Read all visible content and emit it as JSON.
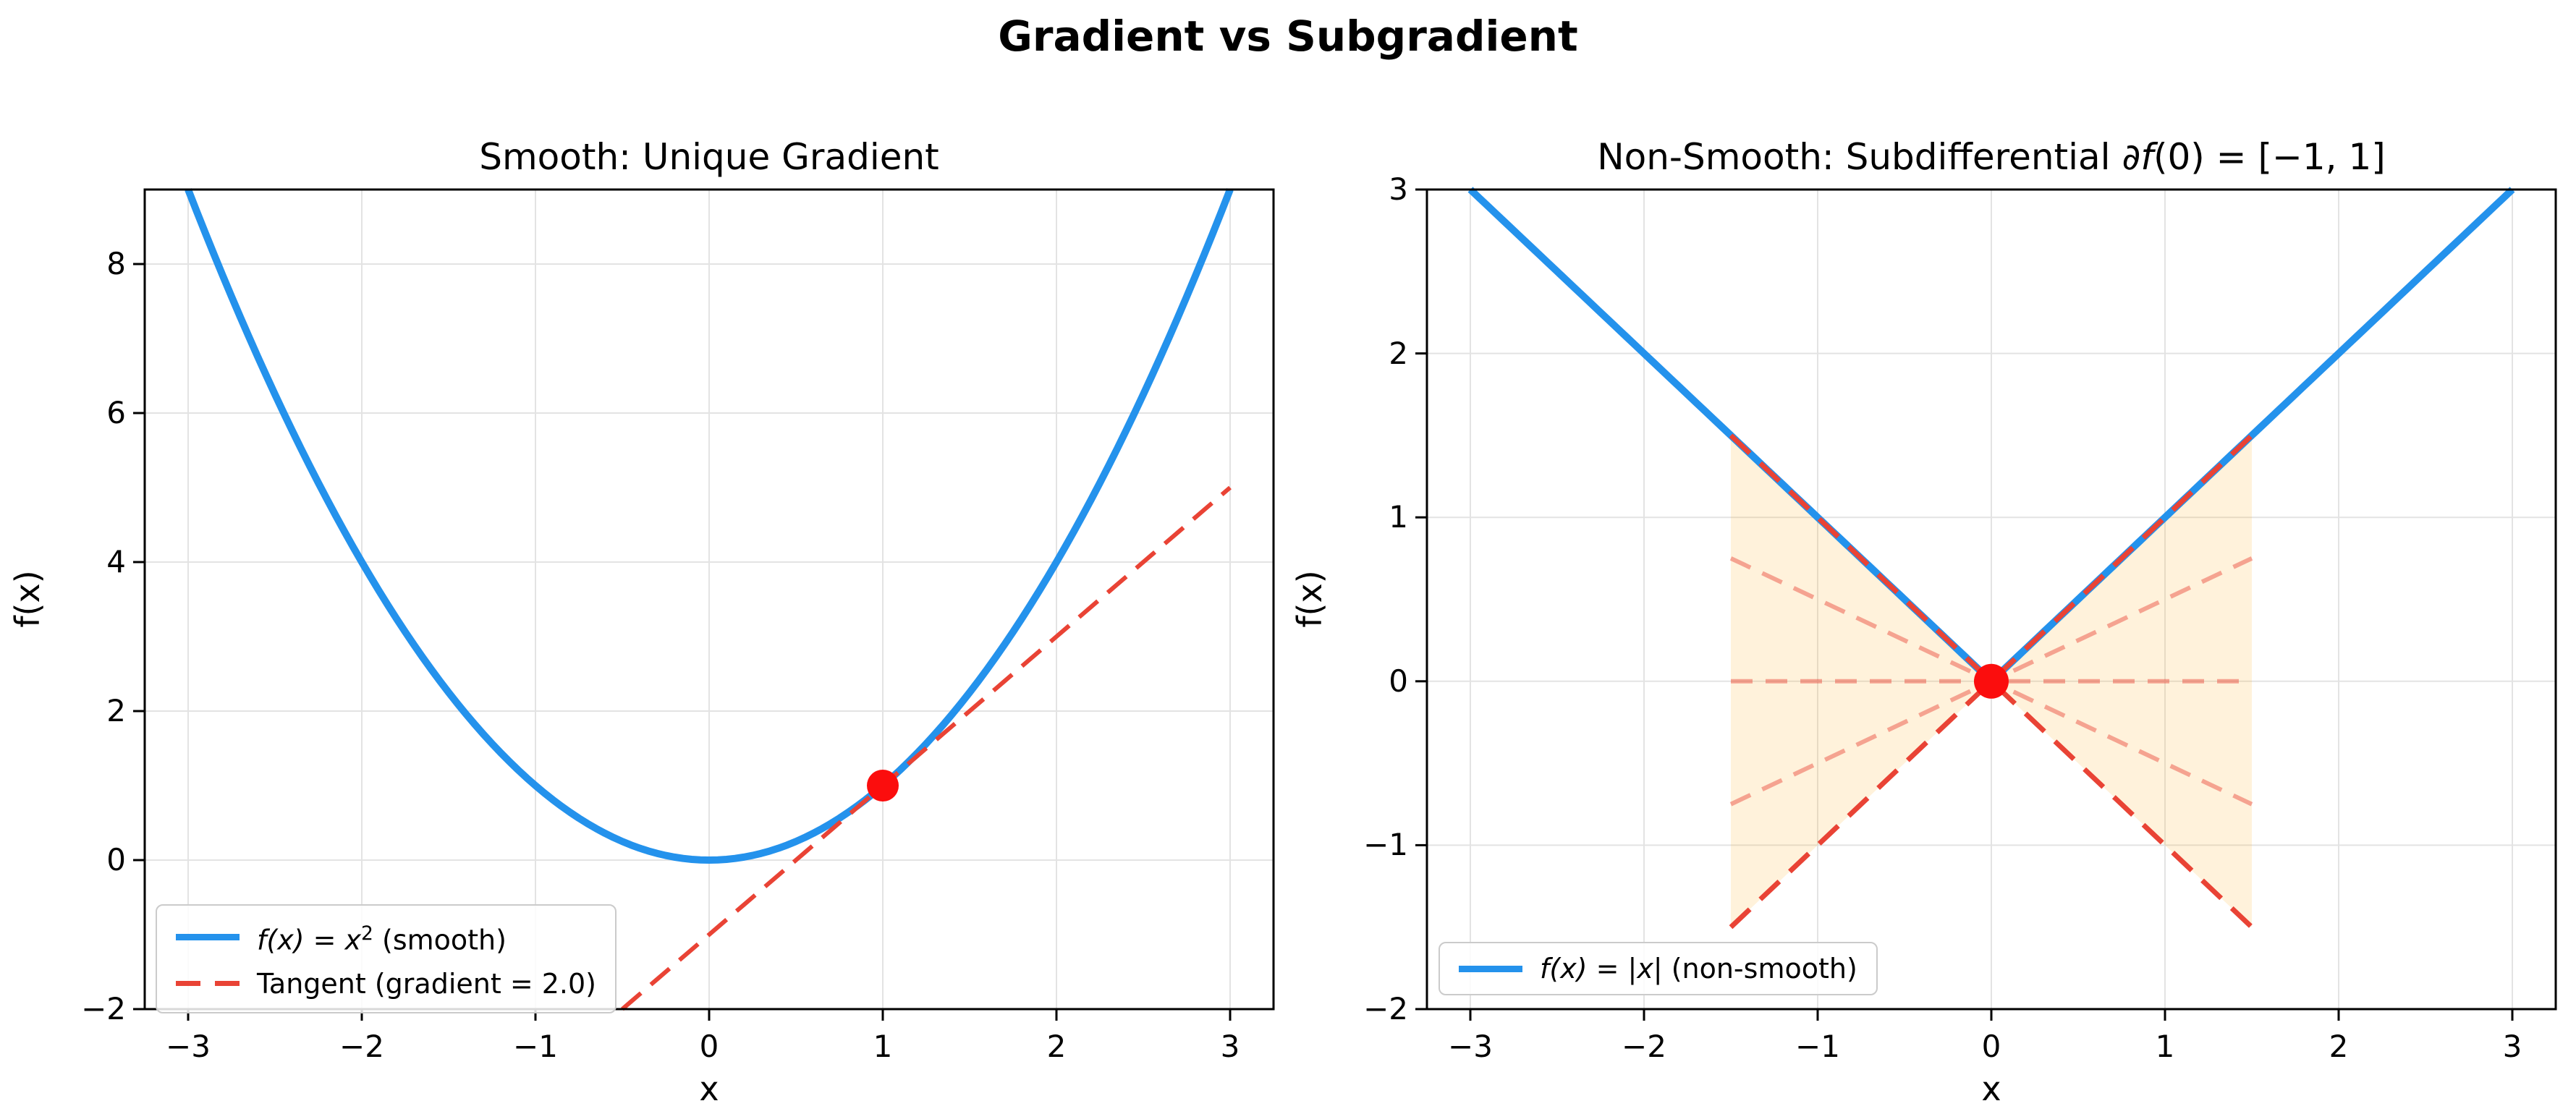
{
  "figure": {
    "suptitle": "Gradient vs Subgradient"
  },
  "style": {
    "background": "#ffffff",
    "grid_color": "#e3e3e3",
    "spine_color": "#000000",
    "curve_blue": "#2492ec",
    "dash_red": "#e94335",
    "dash_red_light": "rgba(233,67,53,0.45)",
    "dot_red": "#fb0d0d",
    "shading_orange": "#ffa500"
  },
  "chart_data": [
    {
      "type": "line",
      "title": "Smooth: Unique Gradient",
      "xlabel": "x",
      "ylabel": "f(x)",
      "xlim": [
        -3.25,
        3.25
      ],
      "ylim": [
        -2,
        9
      ],
      "xticks": [
        -3,
        -2,
        -1,
        0,
        1,
        2,
        3
      ],
      "yticks": [
        -2,
        0,
        2,
        4,
        6,
        8
      ],
      "grid": true,
      "legend_location": "lower left",
      "series": [
        {
          "name": "f(x) = x² (smooth)",
          "fn": "x^2",
          "domain": [
            -3,
            3
          ],
          "color": "#2492ec",
          "style": "solid",
          "width": 10
        },
        {
          "name": "Tangent (gradient = 2.0)",
          "fn": "2x - 1",
          "gradient": 2.0,
          "tangent_point": [
            1.0,
            1.0
          ],
          "domain": [
            -3,
            3
          ],
          "color": "#e94335",
          "style": "dashed",
          "width": 6
        }
      ],
      "marker": {
        "x": 1.0,
        "y": 1.0,
        "color": "#fb0d0d",
        "radius": 22
      },
      "legend": [
        {
          "math": "f(x) = x",
          "sup": "2",
          "rest": " (smooth)",
          "marker": "solid"
        },
        {
          "math": "",
          "sup": "",
          "rest": "Tangent (gradient = 2.0)",
          "marker": "dashed"
        }
      ]
    },
    {
      "type": "line",
      "title": "Non-Smooth: Subdifferential ∂f(0) = [−1, 1]",
      "title_prefix": "Non-Smooth: Subdifferential ",
      "title_math_italic": "∂f",
      "title_math_rest": "(0) = [−1, 1]",
      "xlabel": "x",
      "ylabel": "f(x)",
      "xlim": [
        -3.25,
        3.25
      ],
      "ylim": [
        -2,
        3
      ],
      "xticks": [
        -3,
        -2,
        -1,
        0,
        1,
        2,
        3
      ],
      "yticks": [
        -2,
        -1,
        0,
        1,
        2,
        3
      ],
      "grid": true,
      "legend_location": "lower left",
      "series": [
        {
          "name": "f(x) = |x| (non-smooth)",
          "fn": "|x|",
          "domain": [
            -3,
            3
          ],
          "color": "#2492ec",
          "style": "solid",
          "width": 10
        }
      ],
      "subgradients": {
        "slopes": [
          -1,
          -0.5,
          0,
          0.5,
          1
        ],
        "domain": [
          -1.5,
          1.5
        ],
        "style": "dashed",
        "strong_color": "#e94335",
        "light_color": "rgba(233,67,53,0.45)",
        "strong_width": 7,
        "light_width": 6
      },
      "shaded_region": {
        "x_range": [
          -1.5,
          1.5
        ],
        "upper": "|x|",
        "lower": "-|x|",
        "fill": "#ffa500",
        "alpha": 0.14
      },
      "marker": {
        "x": 0.0,
        "y": 0.0,
        "color": "#fb0d0d",
        "radius": 24
      },
      "legend": [
        {
          "math": "f(x) = |x|",
          "sup": "",
          "rest": " (non-smooth)",
          "marker": "solid"
        }
      ]
    }
  ]
}
